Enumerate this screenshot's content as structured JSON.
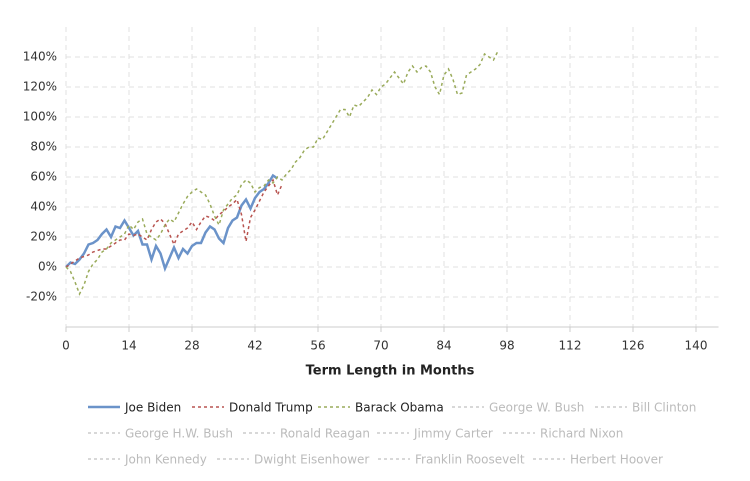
{
  "chart_data": {
    "type": "line",
    "xlabel": "Term Length in Months",
    "xlim": [
      0,
      145
    ],
    "xticks": [
      0,
      14,
      28,
      42,
      56,
      70,
      84,
      98,
      112,
      126,
      140
    ],
    "ylim": [
      -40,
      160
    ],
    "yticks": [
      {
        "value": -20,
        "label": "-20%"
      },
      {
        "value": 0,
        "label": "0%"
      },
      {
        "value": 20,
        "label": "20%"
      },
      {
        "value": 40,
        "label": "40%"
      },
      {
        "value": 60,
        "label": "60%"
      },
      {
        "value": 80,
        "label": "80%"
      },
      {
        "value": 100,
        "label": "100%"
      },
      {
        "value": 120,
        "label": "120%"
      },
      {
        "value": 140,
        "label": "140%"
      }
    ],
    "grid": true,
    "x": [
      0,
      1,
      2,
      3,
      4,
      5,
      6,
      7,
      8,
      9,
      10,
      11,
      12,
      13,
      14,
      15,
      16,
      17,
      18,
      19,
      20,
      21,
      22,
      23,
      24,
      25,
      26,
      27,
      28,
      29,
      30,
      31,
      32,
      33,
      34,
      35,
      36,
      37,
      38,
      39,
      40,
      41,
      42,
      43,
      44,
      45,
      46,
      47,
      48,
      49,
      50,
      51,
      52,
      53,
      54,
      55,
      56,
      57,
      58,
      59,
      60,
      61,
      62,
      63,
      64,
      65,
      66,
      67,
      68,
      69,
      70,
      71,
      72,
      73,
      74,
      75,
      76,
      77,
      78,
      79,
      80,
      81,
      82,
      83,
      84,
      85,
      86,
      87,
      88,
      89,
      90,
      91,
      92,
      93,
      94,
      95,
      96
    ],
    "series": [
      {
        "name": "Joe Biden",
        "color": "#6b93c9",
        "dash": "solid",
        "values": [
          0,
          3,
          2,
          5,
          9,
          15,
          16,
          18,
          22,
          25,
          20,
          27,
          26,
          31,
          26,
          21,
          24,
          15,
          15,
          5,
          14,
          9,
          -1,
          6,
          13,
          6,
          12,
          9,
          14,
          16,
          16,
          23,
          27,
          25,
          19,
          16,
          26,
          31,
          33,
          41,
          45,
          39,
          46,
          50,
          52,
          56,
          61,
          59,
          null,
          null,
          null,
          null,
          null,
          null,
          null,
          null,
          null,
          null,
          null,
          null,
          null,
          null,
          null,
          null,
          null,
          null,
          null,
          null,
          null,
          null,
          null,
          null,
          null,
          null,
          null,
          null,
          null,
          null,
          null,
          null,
          null,
          null,
          null,
          null,
          null,
          null,
          null,
          null,
          null,
          null,
          null,
          null,
          null,
          null,
          null,
          null,
          null
        ]
      },
      {
        "name": "Donald Trump",
        "color": "#b85450",
        "dash": "dotted",
        "values": [
          0,
          2,
          4,
          6,
          7,
          8,
          10,
          11,
          12,
          12,
          14,
          16,
          18,
          18,
          22,
          21,
          22,
          20,
          18,
          25,
          30,
          32,
          29,
          22,
          15,
          22,
          24,
          26,
          30,
          25,
          30,
          34,
          33,
          31,
          35,
          37,
          40,
          42,
          45,
          35,
          17,
          33,
          38,
          44,
          50,
          54,
          58,
          48,
          55,
          null,
          null,
          null,
          null,
          null,
          null,
          null,
          null,
          null,
          null,
          null,
          null,
          null,
          null,
          null,
          null,
          null,
          null,
          null,
          null,
          null,
          null,
          null,
          null,
          null,
          null,
          null,
          null,
          null,
          null,
          null,
          null,
          null,
          null,
          null,
          null,
          null,
          null,
          null,
          null,
          null,
          null,
          null,
          null,
          null,
          null,
          null,
          null
        ]
      },
      {
        "name": "Barack Obama",
        "color": "#9aab5b",
        "dash": "dotted",
        "values": [
          0,
          -3,
          -10,
          -18,
          -12,
          -3,
          2,
          5,
          10,
          12,
          16,
          18,
          20,
          22,
          28,
          25,
          30,
          32,
          22,
          20,
          18,
          22,
          28,
          32,
          30,
          36,
          42,
          47,
          50,
          52,
          50,
          48,
          42,
          34,
          28,
          38,
          42,
          46,
          48,
          55,
          58,
          56,
          50,
          53,
          54,
          58,
          56,
          60,
          58,
          62,
          65,
          70,
          73,
          78,
          80,
          80,
          86,
          85,
          90,
          95,
          100,
          105,
          105,
          100,
          108,
          107,
          110,
          113,
          118,
          115,
          120,
          122,
          126,
          130,
          126,
          122,
          130,
          134,
          130,
          133,
          134,
          130,
          120,
          115,
          128,
          132,
          125,
          115,
          116,
          128,
          130,
          132,
          135,
          142,
          140,
          138,
          144
        ]
      },
      {
        "name": "George W. Bush",
        "color": "#cccccc",
        "dash": "dotted",
        "hidden": true
      },
      {
        "name": "Bill Clinton",
        "color": "#cccccc",
        "dash": "dotted",
        "hidden": true
      },
      {
        "name": "George H.W. Bush",
        "color": "#cccccc",
        "dash": "dotted",
        "hidden": true
      },
      {
        "name": "Ronald Reagan",
        "color": "#cccccc",
        "dash": "dotted",
        "hidden": true
      },
      {
        "name": "Jimmy Carter",
        "color": "#cccccc",
        "dash": "dotted",
        "hidden": true
      },
      {
        "name": "Richard Nixon",
        "color": "#cccccc",
        "dash": "dotted",
        "hidden": true
      },
      {
        "name": "John Kennedy",
        "color": "#cccccc",
        "dash": "dotted",
        "hidden": true
      },
      {
        "name": "Dwight Eisenhower",
        "color": "#cccccc",
        "dash": "dotted",
        "hidden": true
      },
      {
        "name": "Franklin Roosevelt",
        "color": "#cccccc",
        "dash": "dotted",
        "hidden": true
      },
      {
        "name": "Herbert Hoover",
        "color": "#cccccc",
        "dash": "dotted",
        "hidden": true
      }
    ]
  }
}
